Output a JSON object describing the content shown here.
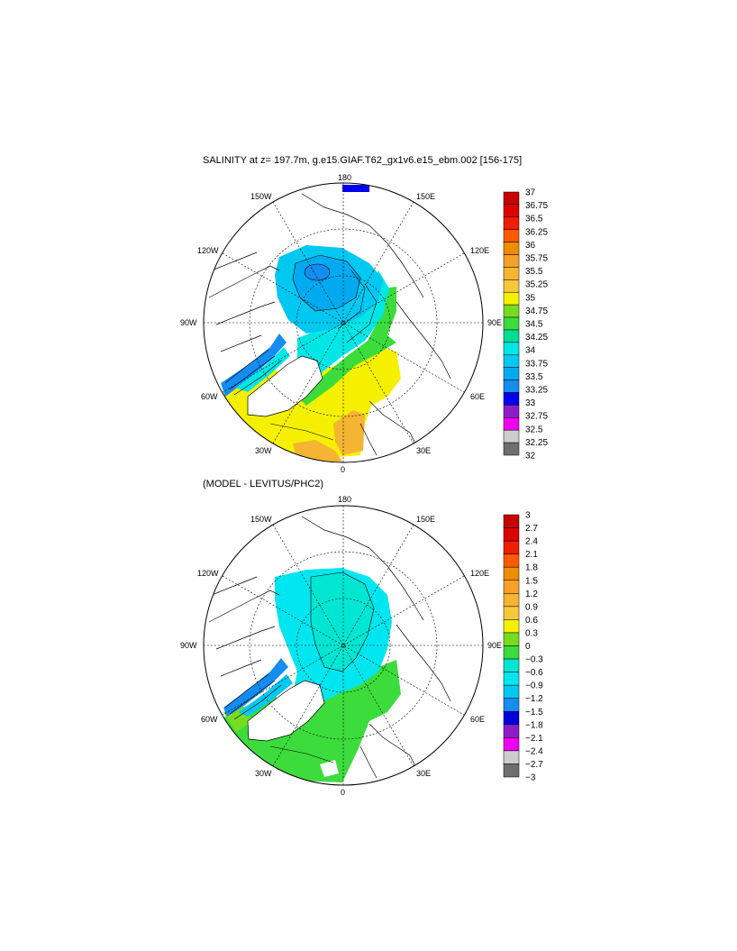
{
  "panels": [
    {
      "title": "SALINITY at z= 197.7m, g.e15.GIAF.T62_gx1v6.e15_ebm.002 [156-175]",
      "lon_labels": {
        "top": "180",
        "bottom": "0",
        "left": "90W",
        "right": "90E",
        "upper_left_1": "150W",
        "upper_left_2": "120W",
        "upper_right_1": "150E",
        "upper_right_2": "120E",
        "lower_left_1": "60W",
        "lower_left_2": "30W",
        "lower_right_1": "60E",
        "lower_right_2": "30E"
      },
      "colorbar": {
        "labels": [
          "37",
          "36.75",
          "36.5",
          "36.25",
          "36",
          "35.75",
          "35.5",
          "35.25",
          "35",
          "34.75",
          "34.5",
          "34.25",
          "34",
          "33.75",
          "33.5",
          "33.25",
          "33",
          "32.75",
          "32.5",
          "32.25",
          "32"
        ],
        "colors": [
          "#c80000",
          "#dc0000",
          "#f01e00",
          "#ff5a00",
          "#f08c00",
          "#f5a028",
          "#f5b432",
          "#f5c83c",
          "#f5f000",
          "#78dc1e",
          "#3cdc3c",
          "#00dc96",
          "#00e6e6",
          "#00c8f0",
          "#00aaf0",
          "#148cf0",
          "#0000f0",
          "#8c1ec8",
          "#f000f0",
          "#cccccc",
          "#6e6e6e"
        ]
      }
    },
    {
      "title": "(MODEL - LEVITUS/PHC2)",
      "lon_labels": {
        "top": "180",
        "bottom": "0",
        "left": "90W",
        "right": "90E",
        "upper_left_1": "150W",
        "upper_left_2": "120W",
        "upper_right_1": "150E",
        "upper_right_2": "120E",
        "lower_left_1": "60W",
        "lower_left_2": "30W",
        "lower_right_1": "60E",
        "lower_right_2": "30E"
      },
      "colorbar": {
        "labels": [
          "3",
          "2.7",
          "2.4",
          "2.1",
          "1.8",
          "1.5",
          "1.2",
          "0.9",
          "0.6",
          "0.3",
          "0",
          "−0.3",
          "−0.6",
          "−0.9",
          "−1.2",
          "−1.5",
          "−1.8",
          "−2.1",
          "−2.4",
          "−2.7",
          "−3"
        ],
        "colors": [
          "#c80000",
          "#dc0000",
          "#f01e00",
          "#ff5a00",
          "#f08c00",
          "#f5a028",
          "#f5b432",
          "#f5c83c",
          "#f5f000",
          "#78dc1e",
          "#3cdc3c",
          "#00e6d2",
          "#00e6f0",
          "#00c8f0",
          "#148cf0",
          "#0000dc",
          "#8c1ec8",
          "#f000f0",
          "#cccccc",
          "#6e6e6e"
        ]
      }
    }
  ],
  "colors": {
    "ocean_light_blue": "#00c8f0",
    "ocean_mid_blue": "#00aaf0",
    "ocean_dark_blue": "#148cf0",
    "cyan": "#00e6e6",
    "green": "#3cdc3c",
    "yellow": "#f5f000",
    "orange": "#f5b432",
    "land": "#ffffff"
  }
}
